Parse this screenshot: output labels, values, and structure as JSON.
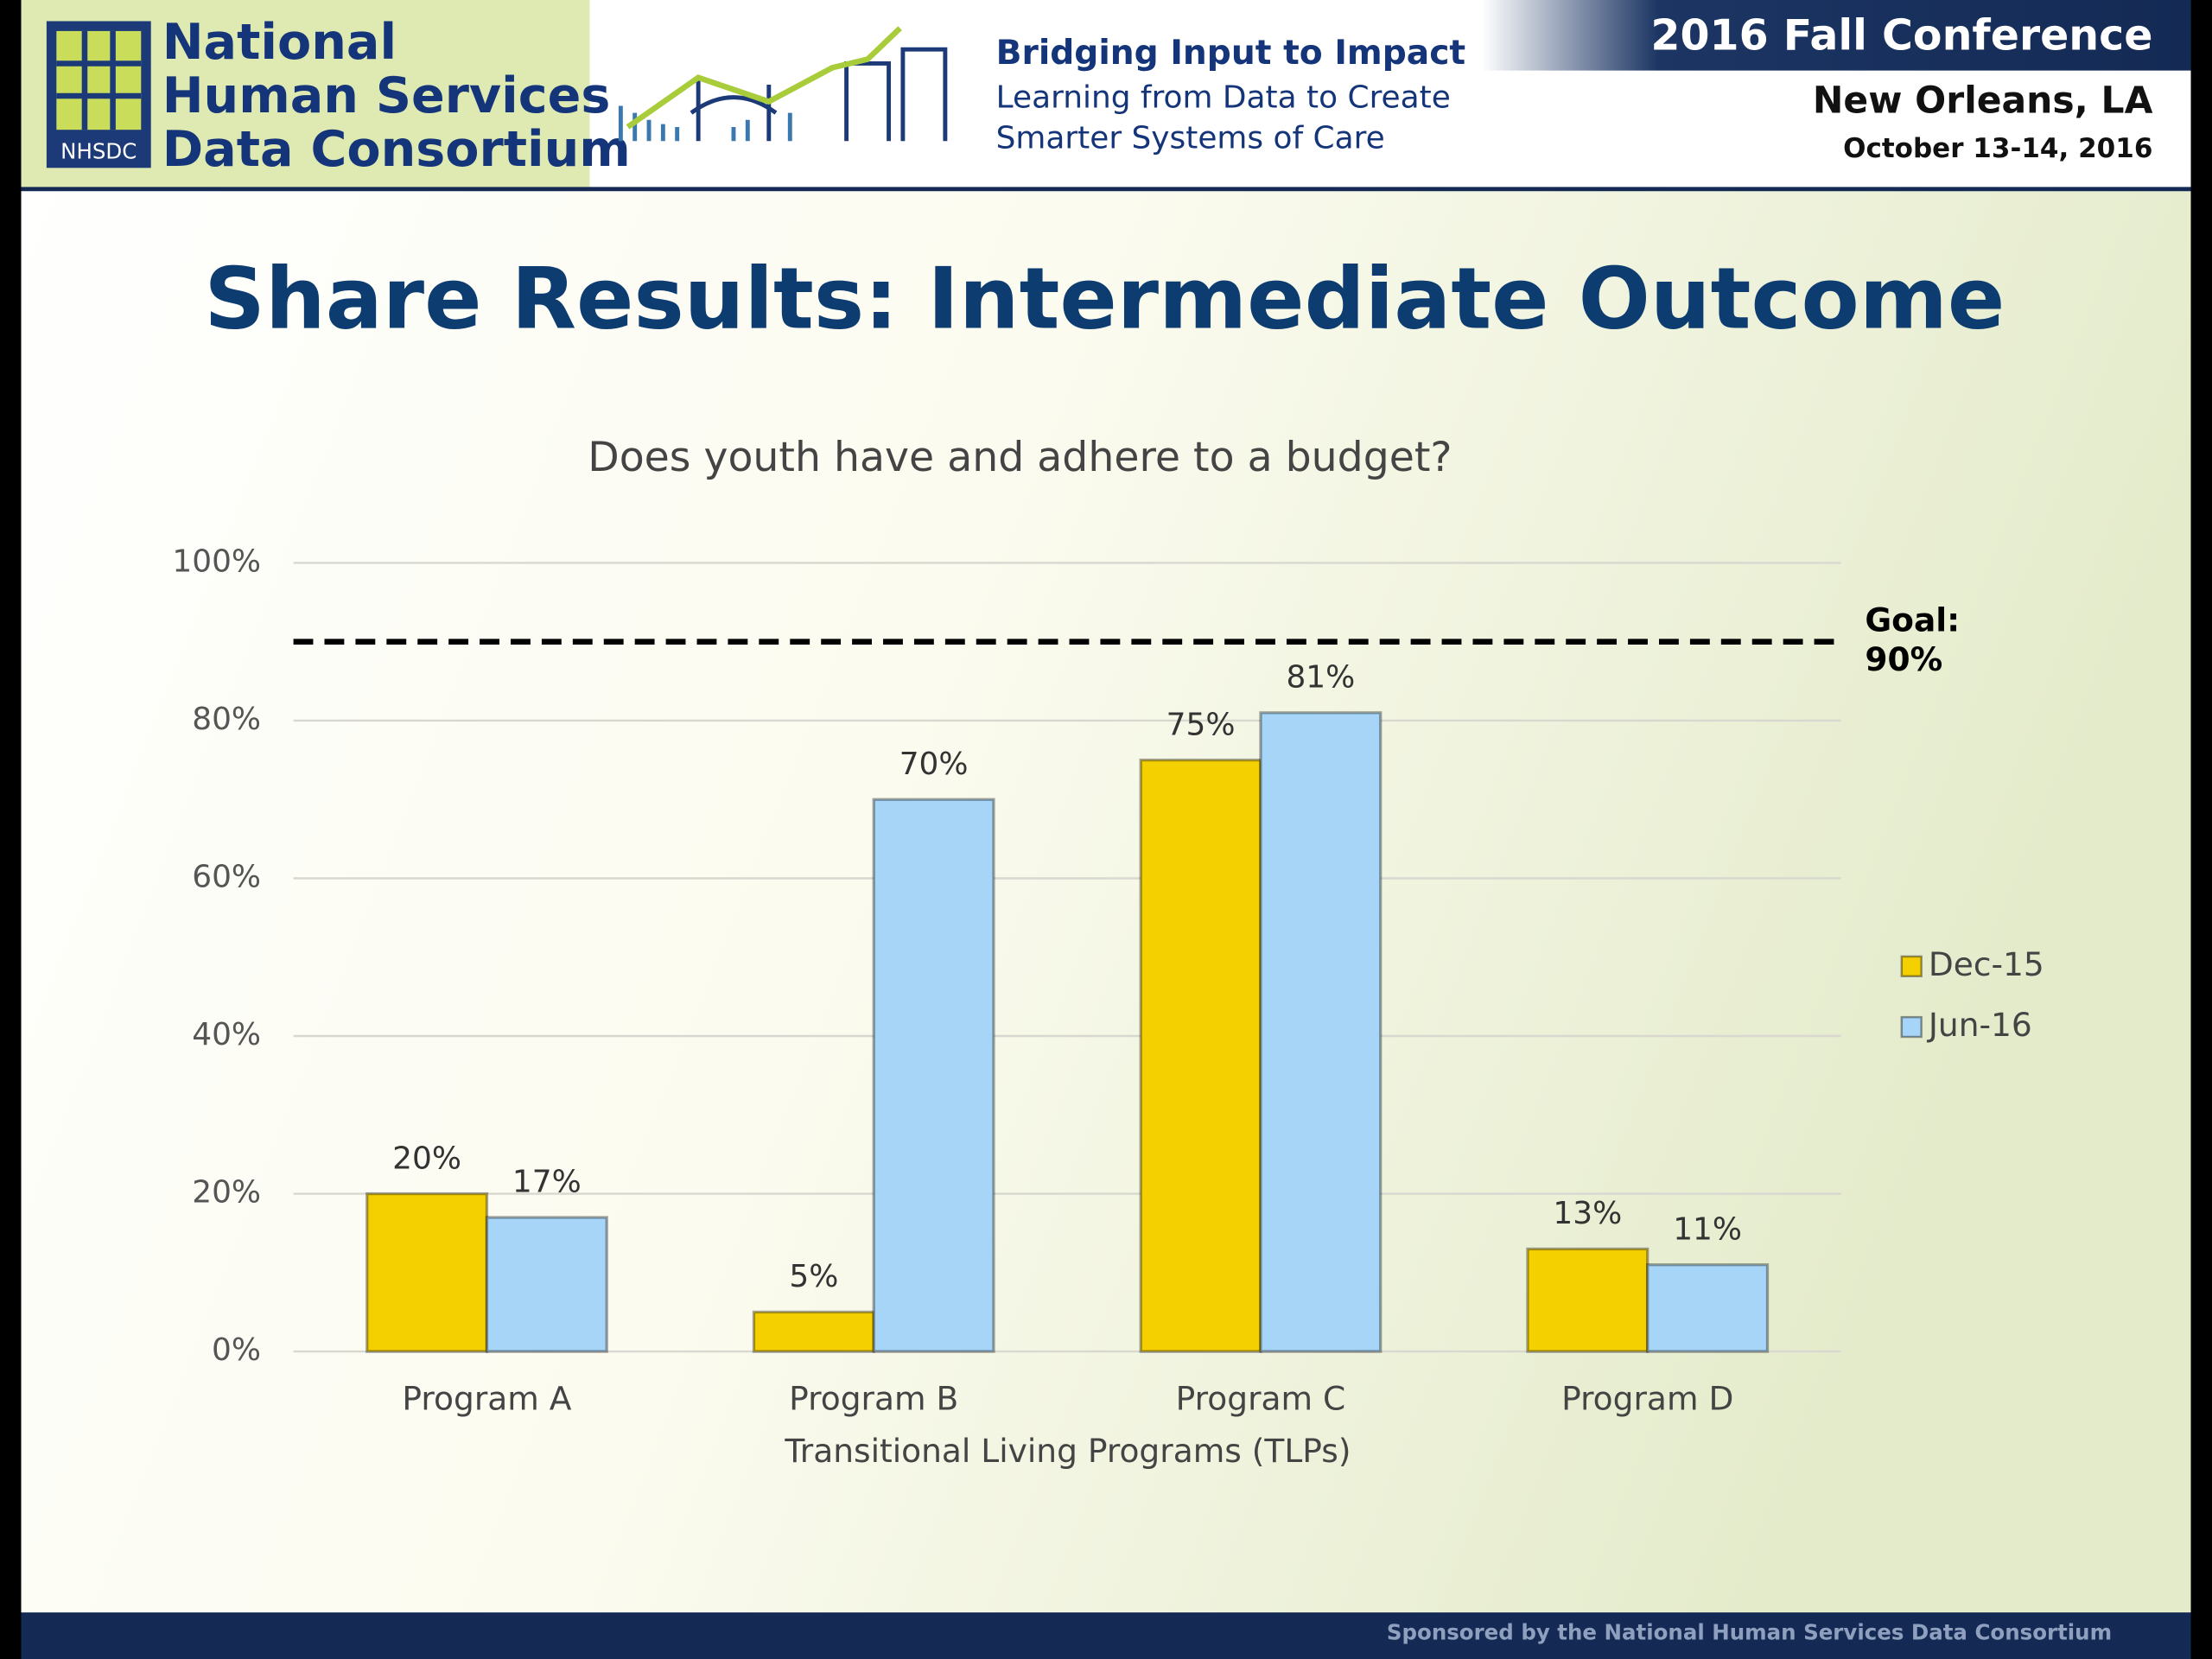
{
  "header": {
    "org": [
      "National",
      "Human Services",
      "Data Consortium"
    ],
    "logo_text": "NHSDC",
    "tagline": [
      "Bridging Input to Impact",
      "Learning from Data to Create",
      "Smarter Systems of Care"
    ],
    "conference": "2016 Fall Conference",
    "location": "New Orleans, LA",
    "dates": "October 13-14, 2016"
  },
  "slide_title": "Share Results: Intermediate Outcome",
  "chart_data": {
    "type": "bar",
    "title": "Does youth have and adhere to a budget?",
    "x_label": "Transitional Living Programs (TLPs)",
    "categories": [
      "Program A",
      "Program B",
      "Program C",
      "Program D"
    ],
    "series": [
      {
        "name": "Dec-15",
        "color": "#f5d000",
        "values": [
          20,
          5,
          75,
          13
        ],
        "value_labels": [
          "20%",
          "5%",
          "75%",
          "13%"
        ]
      },
      {
        "name": "Jun-16",
        "color": "#a6d5f7",
        "values": [
          17,
          70,
          81,
          11
        ],
        "value_labels": [
          "17%",
          "70%",
          "81%",
          "11%"
        ]
      }
    ],
    "ylim": [
      0,
      100
    ],
    "yticks": [
      {
        "value": 0,
        "label": "0%"
      },
      {
        "value": 20,
        "label": "20%"
      },
      {
        "value": 40,
        "label": "40%"
      },
      {
        "value": 60,
        "label": "60%"
      },
      {
        "value": 80,
        "label": "80%"
      },
      {
        "value": 100,
        "label": "100%"
      }
    ],
    "grid": true,
    "legend": "right",
    "goal": {
      "value": 90,
      "label_lines": [
        "Goal:",
        "90%"
      ]
    }
  },
  "footer": "Sponsored by the National Human Services Data Consortium"
}
